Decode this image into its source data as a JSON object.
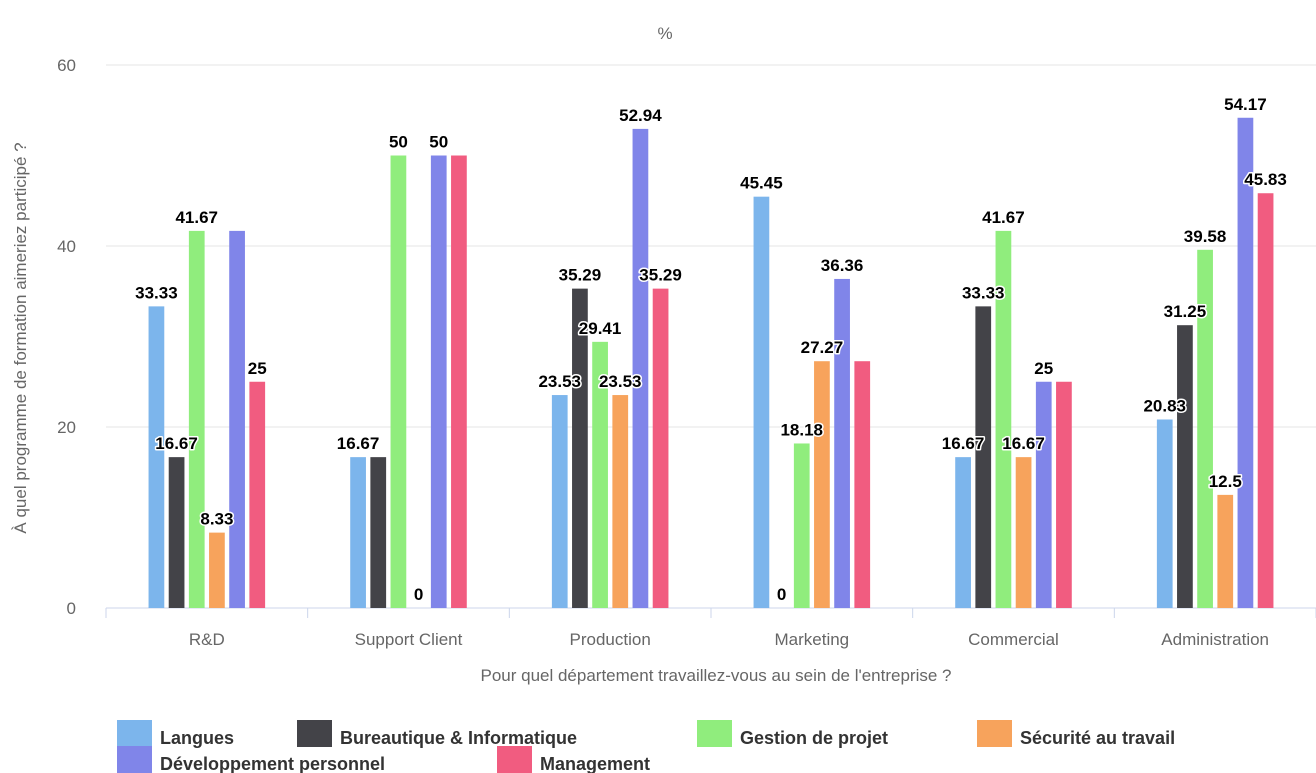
{
  "chart_data": {
    "type": "bar",
    "title": "%",
    "xlabel": "Pour quel département travaillez-vous au sein de l'entreprise ?",
    "ylabel": "À quel programme de formation aimeriez participé ?",
    "ylim": [
      0,
      60
    ],
    "yticks": [
      0,
      20,
      40,
      60
    ],
    "grid": true,
    "legend_position": "bottom",
    "categories": [
      "R&D",
      "Support Client",
      "Production",
      "Marketing",
      "Commercial",
      "Administration"
    ],
    "series": [
      {
        "name": "Langues",
        "color": "#7cb5ec",
        "values": [
          33.33,
          16.67,
          23.53,
          45.45,
          16.67,
          20.83
        ],
        "labels": [
          "33.33",
          "16.67",
          "23.53",
          "45.45",
          "16.67",
          "20.83"
        ]
      },
      {
        "name": "Bureautique & Informatique",
        "color": "#434348",
        "values": [
          16.67,
          16.67,
          35.29,
          0,
          33.33,
          31.25
        ],
        "labels": [
          "16.67",
          "",
          "35.29",
          "0",
          "33.33",
          "31.25"
        ]
      },
      {
        "name": "Gestion de projet",
        "color": "#90ed7d",
        "values": [
          41.67,
          50,
          29.41,
          18.18,
          41.67,
          39.58
        ],
        "labels": [
          "41.67",
          "50",
          "29.41",
          "18.18",
          "41.67",
          "39.58"
        ]
      },
      {
        "name": "Sécurité au travail",
        "color": "#f7a35c",
        "values": [
          8.33,
          0,
          23.53,
          27.27,
          16.67,
          12.5
        ],
        "labels": [
          "8.33",
          "0",
          "23.53",
          "27.27",
          "16.67",
          "12.5"
        ]
      },
      {
        "name": "Développement personnel",
        "color": "#8085e9",
        "values": [
          41.67,
          50,
          52.94,
          36.36,
          25,
          54.17
        ],
        "labels": [
          "",
          "50",
          "52.94",
          "36.36",
          "25",
          "54.17"
        ]
      },
      {
        "name": "Management",
        "color": "#f15c80",
        "values": [
          25,
          50,
          35.29,
          27.27,
          25,
          45.83
        ],
        "labels": [
          "25",
          "",
          "35.29",
          "",
          "",
          "45.83"
        ]
      }
    ]
  }
}
